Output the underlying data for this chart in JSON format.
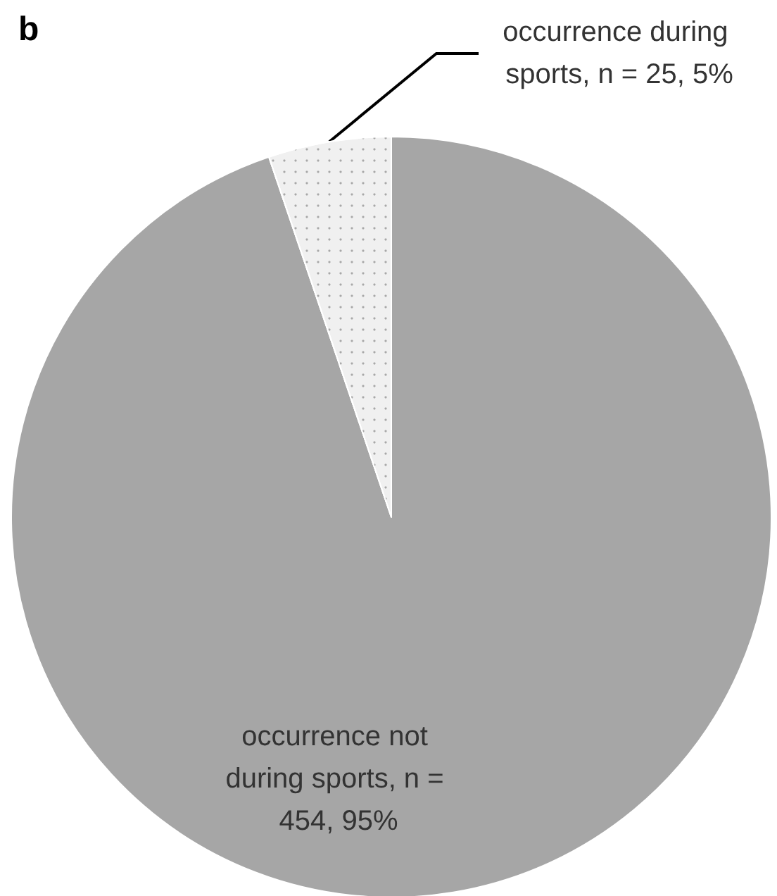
{
  "chart_data": {
    "type": "pie",
    "title": "b",
    "categories": [
      "occurrence not during sports",
      "occurrence during sports"
    ],
    "values": [
      454,
      25
    ],
    "value_labels": [
      "n = 454, 95%",
      "n = 25, 5%"
    ],
    "colors": [
      "#a6a6a6",
      "#f0f0f0"
    ]
  }
}
